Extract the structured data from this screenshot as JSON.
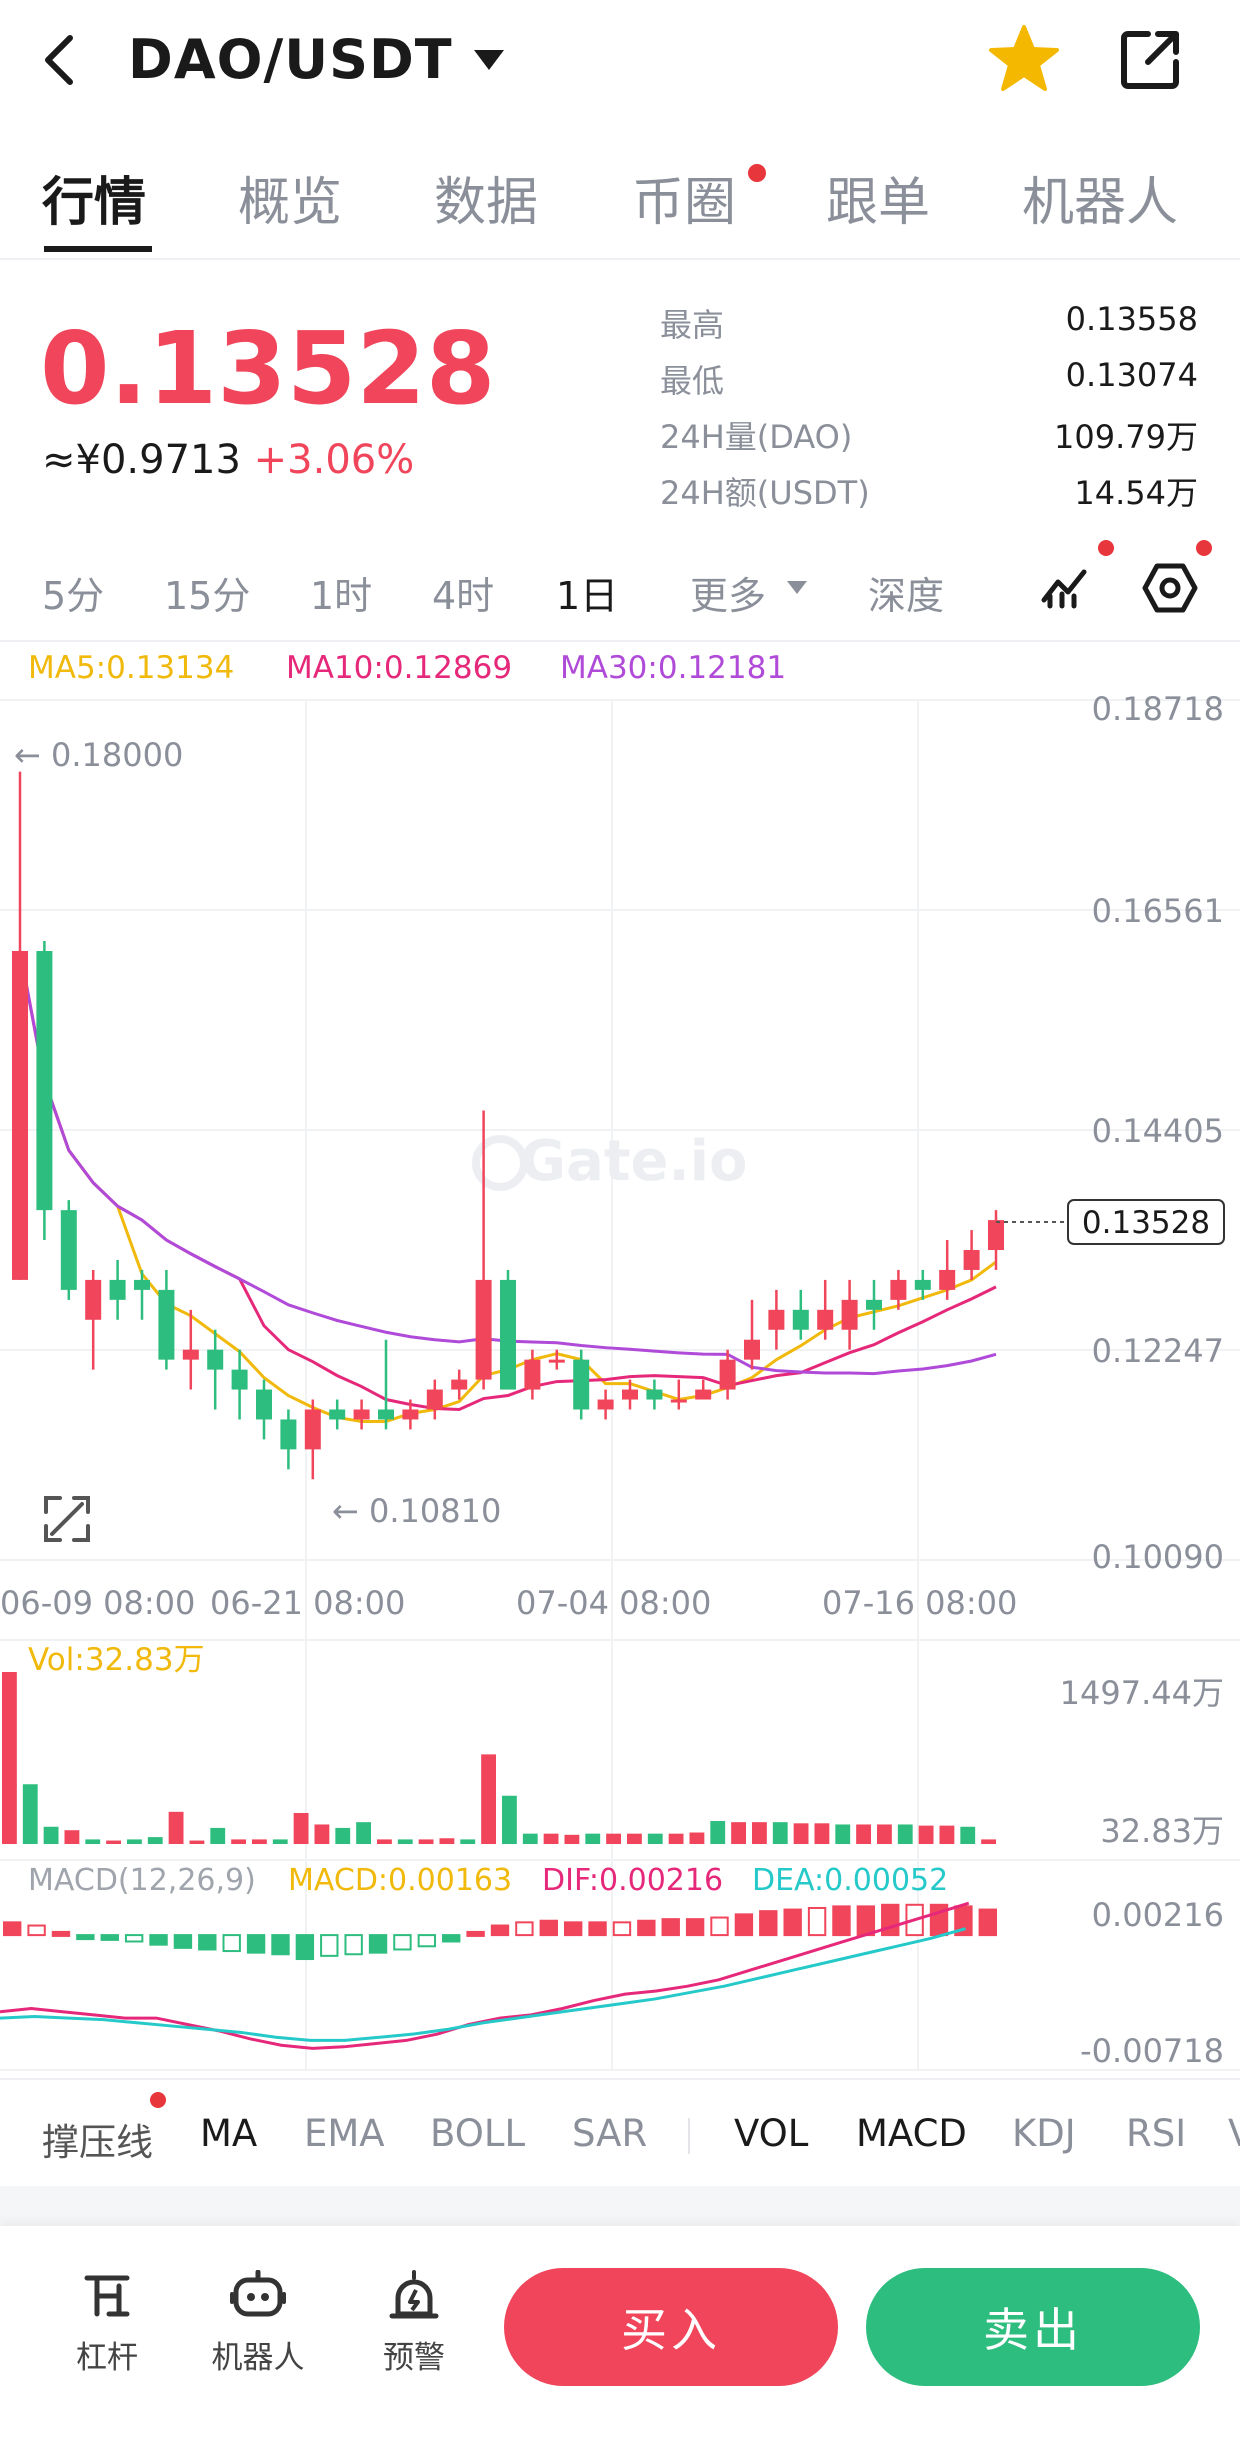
{
  "header": {
    "pair": "DAO/USDT",
    "icons": [
      "back-arrow-icon",
      "caret-down-icon",
      "star-icon",
      "share-icon"
    ],
    "star_color": "#f5b800"
  },
  "tabs": [
    "行情",
    "概览",
    "数据",
    "币圈",
    "跟单",
    "机器人"
  ],
  "active_tab": "行情",
  "ticker": {
    "last_price": "0.13528",
    "cny_price": "≈¥0.9713",
    "change_pct": "+3.06%",
    "stats": [
      {
        "label": "最高",
        "value": "0.13558"
      },
      {
        "label": "最低",
        "value": "0.13074"
      },
      {
        "label": "24H量(DAO)",
        "value": "109.79万"
      },
      {
        "label": "24H额(USDT)",
        "value": "14.54万"
      }
    ]
  },
  "timeframes": [
    "5分",
    "15分",
    "1时",
    "4时",
    "1日",
    "更多",
    "深度"
  ],
  "active_timeframe": "1日",
  "ma_legend": {
    "ma5": "MA5:0.13134",
    "ma10": "MA10:0.12869",
    "ma30": "MA30:0.12181"
  },
  "colors": {
    "up": "#f0455a",
    "down": "#2dbd7e",
    "ma5": "#f0b90b",
    "ma10": "#e6287a",
    "ma30": "#b04ad8",
    "dif": "#e6287a",
    "dea": "#26c9c9"
  },
  "price_chart": {
    "y_ticks": [
      "0.18718",
      "0.16561",
      "0.14405",
      "0.12247",
      "0.10090"
    ],
    "high_label": "← 0.18000",
    "low_label": "← 0.10810",
    "current_price_tag": "0.13528",
    "x_ticks": [
      "06-09 08:00",
      "06-21 08:00",
      "07-04 08:00",
      "07-16 08:00"
    ],
    "watermark": "Gate.io"
  },
  "chart_data": {
    "type": "candlestick",
    "ylim": [
      0.1009,
      0.18718
    ],
    "candles": [
      [
        0.129,
        0.162,
        0.129,
        0.18
      ],
      [
        0.162,
        0.136,
        0.133,
        0.163
      ],
      [
        0.136,
        0.128,
        0.127,
        0.137
      ],
      [
        0.125,
        0.129,
        0.12,
        0.13
      ],
      [
        0.129,
        0.127,
        0.125,
        0.131
      ],
      [
        0.129,
        0.128,
        0.125,
        0.13
      ],
      [
        0.128,
        0.121,
        0.12,
        0.13
      ],
      [
        0.121,
        0.122,
        0.118,
        0.126
      ],
      [
        0.122,
        0.12,
        0.116,
        0.124
      ],
      [
        0.12,
        0.118,
        0.115,
        0.122
      ],
      [
        0.118,
        0.115,
        0.113,
        0.119
      ],
      [
        0.115,
        0.112,
        0.11,
        0.116
      ],
      [
        0.112,
        0.116,
        0.109,
        0.117
      ],
      [
        0.116,
        0.115,
        0.114,
        0.117
      ],
      [
        0.115,
        0.116,
        0.114,
        0.117
      ],
      [
        0.116,
        0.115,
        0.114,
        0.123
      ],
      [
        0.115,
        0.116,
        0.114,
        0.117
      ],
      [
        0.116,
        0.118,
        0.115,
        0.119
      ],
      [
        0.118,
        0.119,
        0.117,
        0.12
      ],
      [
        0.119,
        0.129,
        0.118,
        0.146
      ],
      [
        0.129,
        0.118,
        0.118,
        0.13
      ],
      [
        0.118,
        0.121,
        0.117,
        0.122
      ],
      [
        0.121,
        0.121,
        0.12,
        0.122
      ],
      [
        0.121,
        0.116,
        0.115,
        0.122
      ],
      [
        0.116,
        0.117,
        0.115,
        0.118
      ],
      [
        0.117,
        0.118,
        0.116,
        0.119
      ],
      [
        0.118,
        0.117,
        0.116,
        0.119
      ],
      [
        0.117,
        0.117,
        0.116,
        0.119
      ],
      [
        0.117,
        0.118,
        0.117,
        0.119
      ],
      [
        0.118,
        0.121,
        0.117,
        0.122
      ],
      [
        0.121,
        0.123,
        0.12,
        0.127
      ],
      [
        0.124,
        0.126,
        0.122,
        0.128
      ],
      [
        0.126,
        0.124,
        0.123,
        0.128
      ],
      [
        0.124,
        0.126,
        0.123,
        0.129
      ],
      [
        0.124,
        0.127,
        0.122,
        0.129
      ],
      [
        0.127,
        0.126,
        0.124,
        0.129
      ],
      [
        0.127,
        0.129,
        0.126,
        0.13
      ],
      [
        0.129,
        0.128,
        0.127,
        0.13
      ],
      [
        0.128,
        0.13,
        0.127,
        0.133
      ],
      [
        0.13,
        0.132,
        0.129,
        0.134
      ],
      [
        0.132,
        0.135,
        0.13,
        0.136
      ]
    ],
    "candle_fields": [
      "open",
      "close",
      "low",
      "high"
    ]
  },
  "volume_chart": {
    "label": "Vol:32.83万",
    "y_max_label": "1497.44万",
    "y_min_label": "32.83万",
    "values": [
      1497,
      520,
      150,
      120,
      40,
      30,
      40,
      60,
      280,
      30,
      140,
      40,
      40,
      40,
      270,
      170,
      140,
      190,
      40,
      40,
      40,
      50,
      40,
      780,
      420,
      90,
      90,
      80,
      90,
      90,
      90,
      90,
      90,
      100,
      200,
      190,
      190,
      190,
      180,
      180,
      170,
      170,
      170,
      170,
      160,
      160,
      150,
      40
    ]
  },
  "macd_chart": {
    "legend_title": "MACD(12,26,9)",
    "macd": "MACD:0.00163",
    "dif": "DIF:0.00216",
    "dea": "DEA:0.00052",
    "y_top": "0.00216",
    "y_bottom": "-0.00718",
    "hist": [
      0.0008,
      0.0006,
      0.0002,
      -0.0002,
      -0.0003,
      -0.0004,
      -0.0006,
      -0.0008,
      -0.0009,
      -0.001,
      -0.0011,
      -0.0012,
      -0.0015,
      -0.0013,
      -0.0012,
      -0.0011,
      -0.0009,
      -0.0007,
      -0.0004,
      0.0002,
      0.0006,
      0.0008,
      0.0009,
      0.0008,
      0.0008,
      0.0008,
      0.0009,
      0.001,
      0.001,
      0.0011,
      0.0013,
      0.0015,
      0.0016,
      0.0017,
      0.0018,
      0.0018,
      0.0019,
      0.0019,
      0.0019,
      0.0018,
      0.0016
    ],
    "dif_line": [
      -0.0048,
      -0.0046,
      -0.0048,
      -0.005,
      -0.0052,
      -0.0052,
      -0.0056,
      -0.006,
      -0.0065,
      -0.0069,
      -0.0071,
      -0.007,
      -0.0068,
      -0.0066,
      -0.0062,
      -0.0056,
      -0.0052,
      -0.005,
      -0.0046,
      -0.0041,
      -0.0037,
      -0.0035,
      -0.0032,
      -0.0028,
      -0.0022,
      -0.0016,
      -0.001,
      -0.0004,
      0.0002,
      0.0008,
      0.0014,
      0.002
    ],
    "dea_line": [
      -0.0052,
      -0.0051,
      -0.0052,
      -0.0053,
      -0.0055,
      -0.0057,
      -0.0059,
      -0.0061,
      -0.0064,
      -0.0066,
      -0.0066,
      -0.0064,
      -0.0062,
      -0.0059,
      -0.0055,
      -0.0052,
      -0.0049,
      -0.0046,
      -0.0043,
      -0.004,
      -0.0036,
      -0.0032,
      -0.0027,
      -0.0022,
      -0.0017,
      -0.0012,
      -0.0007,
      -0.0002,
      0.0004
    ]
  },
  "indicators": [
    "撑压线",
    "MA",
    "EMA",
    "BOLL",
    "SAR",
    "VOL",
    "MACD",
    "KDJ",
    "RSI",
    "V"
  ],
  "active_indicators": [
    "MA",
    "VOL",
    "MACD"
  ],
  "bottom_bar": {
    "tools": [
      {
        "label": "杠杆",
        "icon": "leverage-icon"
      },
      {
        "label": "机器人",
        "icon": "robot-icon"
      },
      {
        "label": "预警",
        "icon": "alarm-icon"
      }
    ],
    "buy_label": "买入",
    "sell_label": "卖出"
  }
}
